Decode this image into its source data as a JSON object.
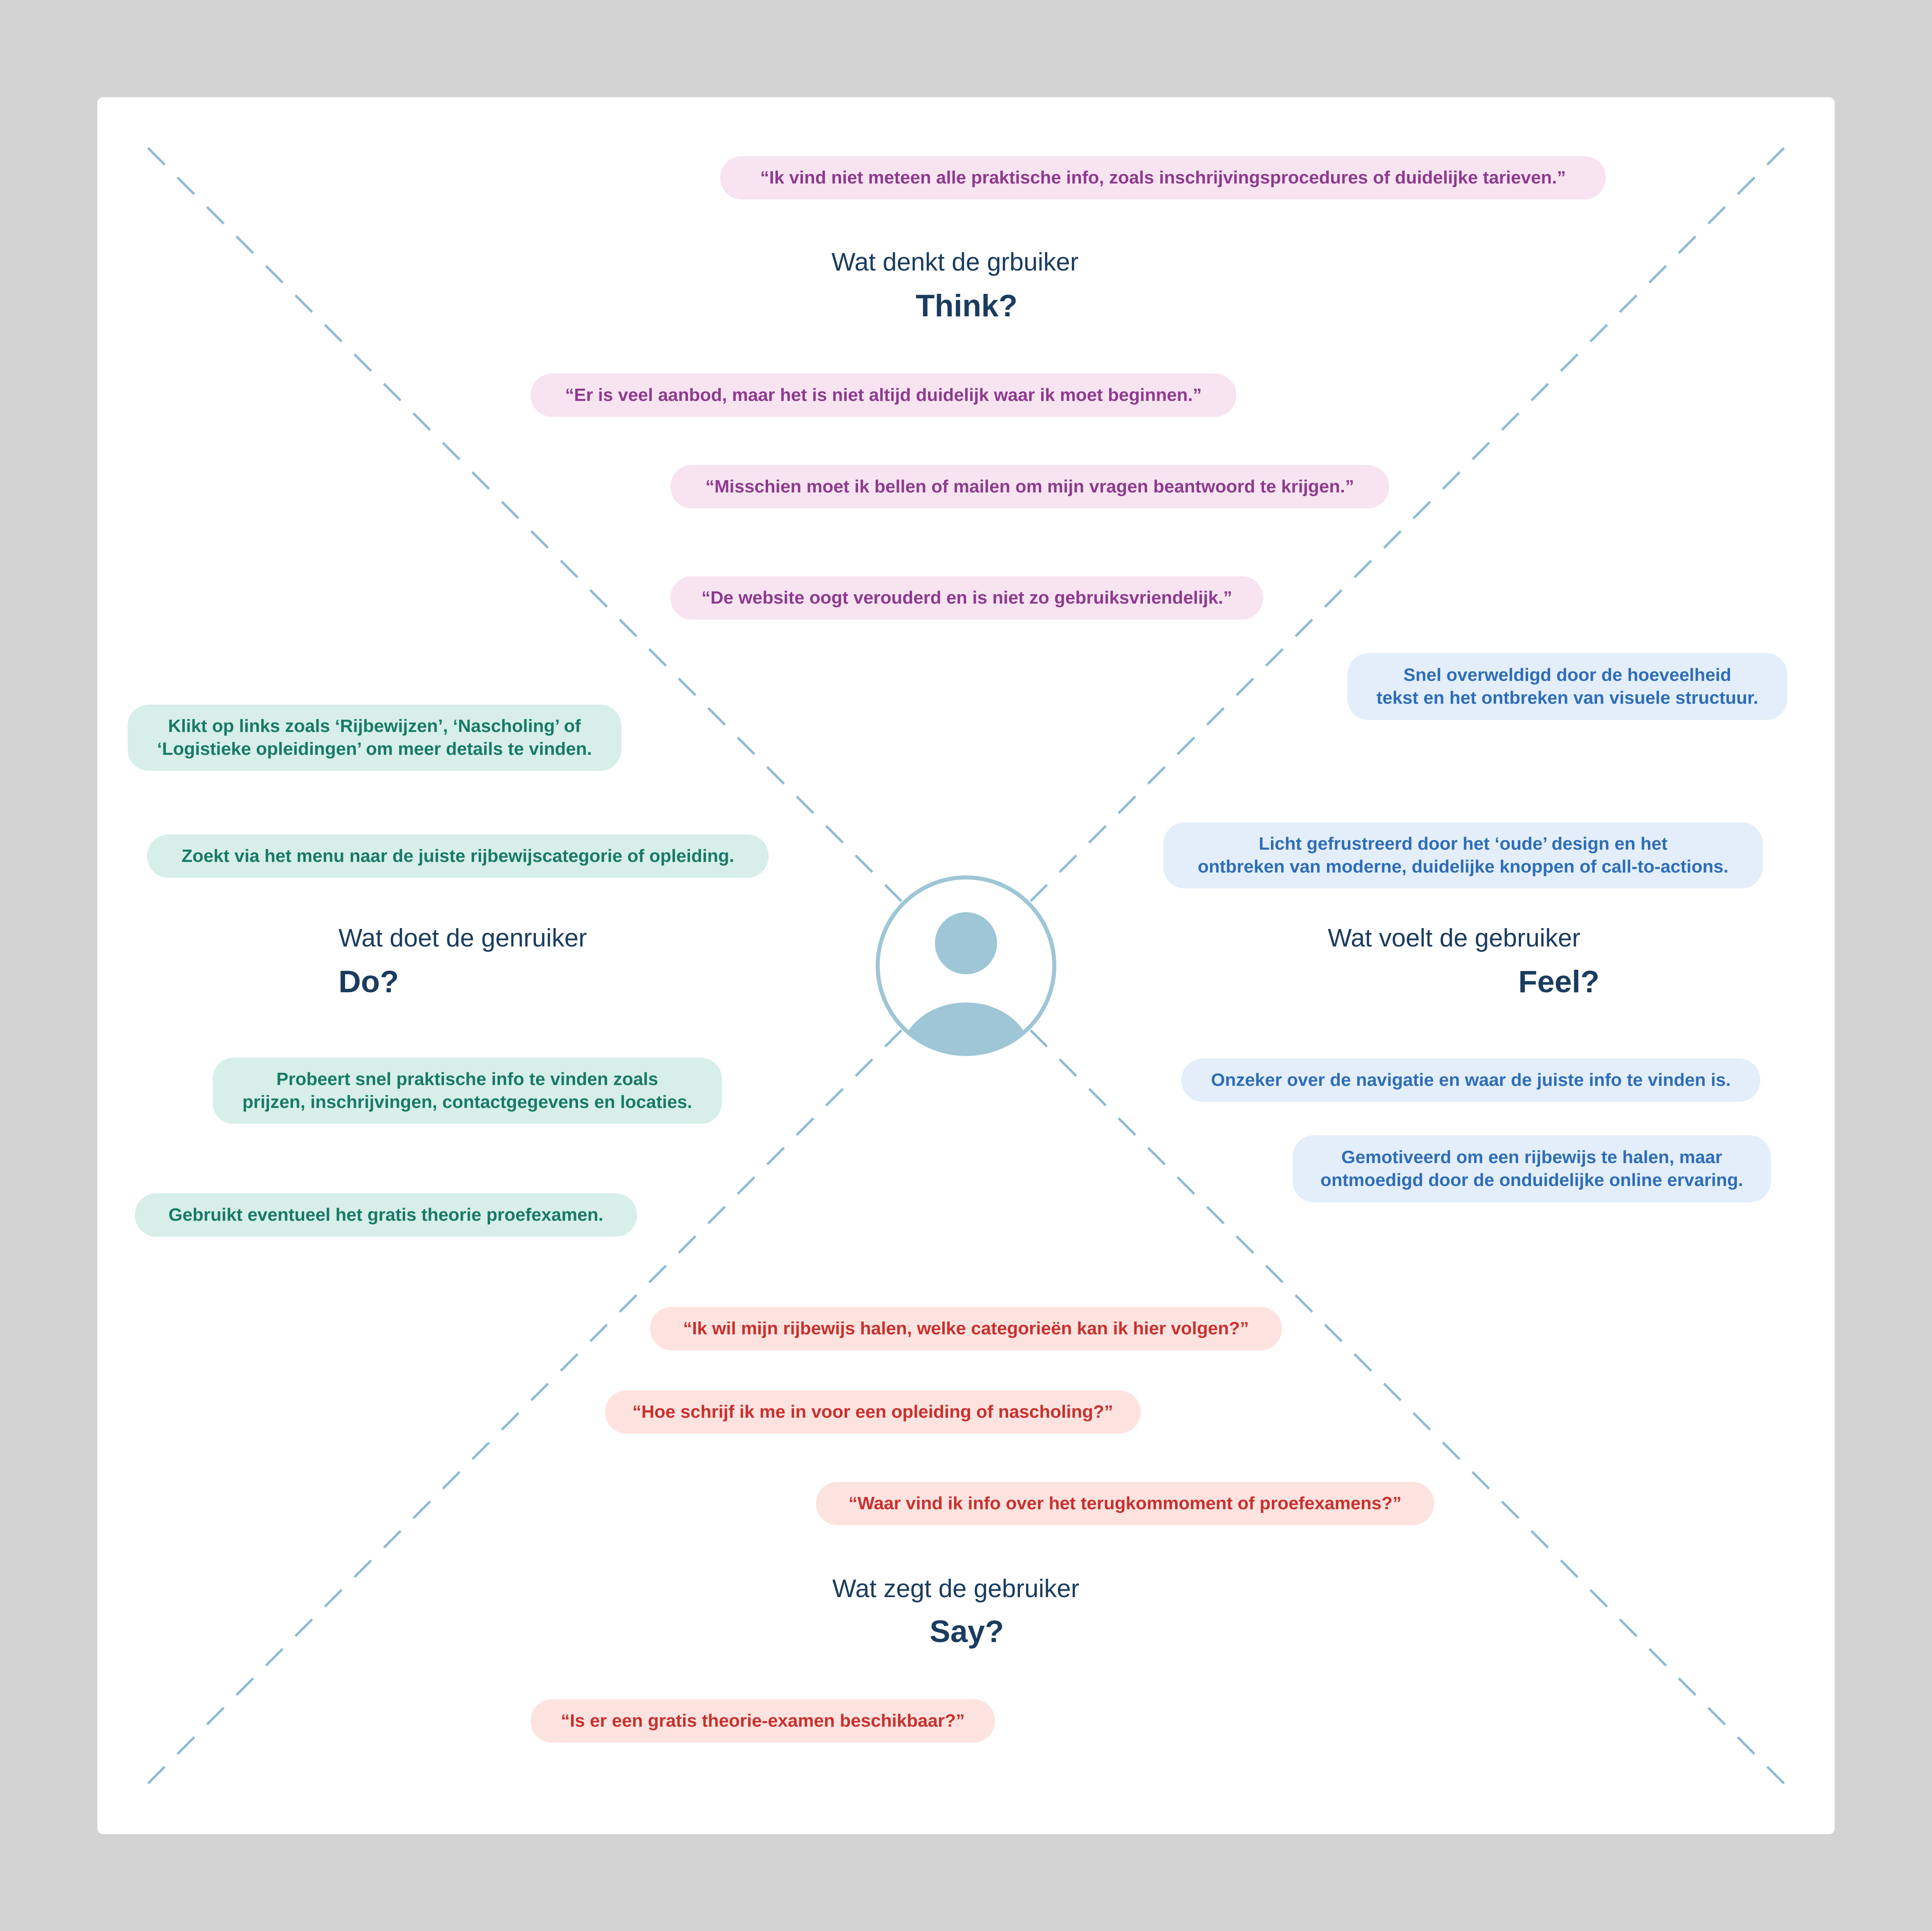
{
  "colors": {
    "think_text": "#8e3a8f",
    "think_bg": "#f7e4f0",
    "feel_text": "#2e6db8",
    "feel_bg": "#e3eefa",
    "do_text": "#177a66",
    "do_bg": "#d7eee9",
    "say_text": "#c9302c",
    "say_bg": "#fde3e0",
    "heading": "#1a3c5e",
    "divider": "#8fbcd6",
    "avatar": "#9ec6d6"
  },
  "center": {
    "icon": "user-avatar-icon"
  },
  "think": {
    "title": "Wat denkt de grbuiker",
    "heading": "Think?",
    "items": [
      "“Ik vind niet meteen alle praktische info, zoals inschrijvingsprocedures of duidelijke tarieven.”",
      "“Er is veel aanbod, maar het is niet altijd duidelijk waar ik moet beginnen.”",
      "“Misschien moet ik bellen of mailen om mijn vragen beantwoord te krijgen.”",
      "“De website oogt verouderd en is niet zo gebruiksvriendelijk.”"
    ]
  },
  "feel": {
    "title": "Wat voelt de gebruiker",
    "heading": "Feel?",
    "items": [
      [
        "Snel overweldigd door de hoeveelheid",
        "tekst en het ontbreken van visuele structuur."
      ],
      [
        "Licht gefrustreerd door het ‘oude’ design en het",
        "ontbreken van moderne, duidelijke knoppen of call-to-actions."
      ],
      "Onzeker over de navigatie en waar de juiste info te vinden is.",
      [
        "Gemotiveerd om een rijbewijs te halen, maar",
        "ontmoedigd door de onduidelijke online ervaring."
      ]
    ]
  },
  "do": {
    "title": "Wat doet de genruiker",
    "heading": "Do?",
    "items": [
      [
        "Klikt op links zoals ‘Rijbewijzen’, ‘Nascholing’ of",
        "‘Logistieke opleidingen’ om meer details te vinden."
      ],
      "Zoekt via het menu naar de juiste rijbewijscategorie of opleiding.",
      [
        "Probeert snel praktische info te vinden zoals",
        "prijzen, inschrijvingen, contactgegevens en locaties."
      ],
      "Gebruikt eventueel het gratis theorie proefexamen."
    ]
  },
  "say": {
    "title": "Wat zegt de gebruiker",
    "heading": "Say?",
    "items": [
      "“Ik wil mijn rijbewijs halen, welke categorieën kan ik hier volgen?”",
      "“Hoe schrijf ik me in voor een opleiding of nascholing?”",
      "“Waar vind ik info over het terugkommoment of proefexamens?”",
      "“Is er een gratis theorie-examen beschikbaar?”"
    ]
  }
}
